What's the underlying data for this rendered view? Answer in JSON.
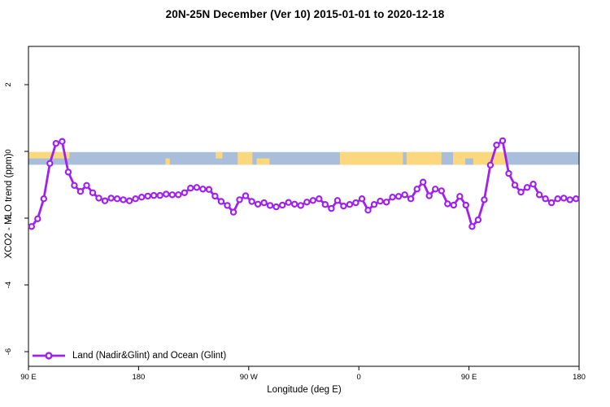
{
  "figure": {
    "title": "20N-25N December (Ver 10)   2015-01-01 to 2020-12-18",
    "colors": {
      "series": "#A020F0",
      "marker_fill": "#FFFFFF",
      "land": "#FBD87E",
      "ocean": "#A9BEDB",
      "axis": "#000000",
      "background": "#FFFFFF"
    }
  },
  "chart_data": {
    "type": "line",
    "title": "20N-25N December (Ver 10)   2015-01-01 to 2020-12-18",
    "xlabel": "Longitude (deg E)",
    "ylabel": "XCO2 - MLO trend (ppm)",
    "xlim": [
      90,
      540
    ],
    "ylim": [
      -6.4,
      3.1
    ],
    "grid": false,
    "legend_position": "bottom-left",
    "x_ticks": [
      {
        "lon": 90,
        "label": "90 E"
      },
      {
        "lon": 180,
        "label": "180"
      },
      {
        "lon": 270,
        "label": "90 W"
      },
      {
        "lon": 360,
        "label": "0"
      },
      {
        "lon": 450,
        "label": "90 E"
      },
      {
        "lon": 540,
        "label": "180"
      }
    ],
    "y_ticks": [
      {
        "value": 2,
        "label": "2"
      },
      {
        "value": 0,
        "label": "0"
      },
      {
        "value": -2,
        "label": "-2"
      },
      {
        "value": -4,
        "label": "-4"
      },
      {
        "value": -6,
        "label": "-6"
      }
    ],
    "x_units": "degrees longitude east of 0, unwrapped 90E..540",
    "x": [
      92.5,
      97.5,
      102.5,
      107.5,
      112.5,
      117.5,
      122.5,
      127.5,
      132.5,
      137.5,
      142.5,
      147.5,
      152.5,
      157.5,
      162.5,
      167.5,
      172.5,
      177.5,
      182.5,
      187.5,
      192.5,
      197.5,
      202.5,
      207.5,
      212.5,
      217.5,
      222.5,
      227.5,
      232.5,
      237.5,
      242.5,
      247.5,
      252.5,
      257.5,
      262.5,
      267.5,
      272.5,
      277.5,
      282.5,
      287.5,
      292.5,
      297.5,
      302.5,
      307.5,
      312.5,
      317.5,
      322.5,
      327.5,
      332.5,
      337.5,
      342.5,
      347.5,
      352.5,
      357.5,
      362.5,
      367.5,
      372.5,
      377.5,
      382.5,
      387.5,
      392.5,
      397.5,
      402.5,
      407.5,
      412.5,
      417.5,
      422.5,
      427.5,
      432.5,
      437.5,
      442.5,
      447.5,
      452.5,
      457.5,
      462.5,
      467.5,
      472.5,
      477.5,
      482.5,
      487.5,
      492.5,
      497.5,
      502.5,
      507.5,
      512.5,
      517.5,
      522.5,
      527.5,
      532.5,
      537.5
    ],
    "series": [
      {
        "name": "Land (Nadir&Glint) and Ocean (Glint)",
        "marker": "open-circle",
        "values": [
          -2.25,
          -2.02,
          -1.42,
          -0.36,
          0.24,
          0.3,
          -0.62,
          -1.02,
          -1.2,
          -1.02,
          -1.24,
          -1.4,
          -1.48,
          -1.4,
          -1.42,
          -1.45,
          -1.48,
          -1.42,
          -1.37,
          -1.34,
          -1.32,
          -1.32,
          -1.28,
          -1.3,
          -1.3,
          -1.24,
          -1.1,
          -1.08,
          -1.13,
          -1.14,
          -1.34,
          -1.5,
          -1.62,
          -1.82,
          -1.45,
          -1.33,
          -1.5,
          -1.58,
          -1.54,
          -1.62,
          -1.66,
          -1.61,
          -1.53,
          -1.58,
          -1.62,
          -1.52,
          -1.47,
          -1.42,
          -1.59,
          -1.71,
          -1.47,
          -1.64,
          -1.59,
          -1.54,
          -1.42,
          -1.76,
          -1.59,
          -1.49,
          -1.52,
          -1.37,
          -1.35,
          -1.3,
          -1.42,
          -1.13,
          -0.92,
          -1.33,
          -1.13,
          -1.18,
          -1.57,
          -1.61,
          -1.35,
          -1.61,
          -2.25,
          -2.05,
          -1.45,
          -0.41,
          0.19,
          0.32,
          -0.66,
          -1.01,
          -1.22,
          -1.08,
          -0.98,
          -1.3,
          -1.42,
          -1.54,
          -1.42,
          -1.4,
          -1.45,
          -1.42
        ]
      }
    ],
    "map_band": {
      "description": "land/ocean strip for 20N-25N latitude band",
      "y_top_ppm": -0.02,
      "y_bottom_ppm": -0.4,
      "base": "ocean",
      "land_segments": [
        {
          "from": 90,
          "to": 123.5,
          "part": "top"
        },
        {
          "from": 202,
          "to": 205.5,
          "part": "bottom"
        },
        {
          "from": 243,
          "to": 248.5,
          "part": "top"
        },
        {
          "from": 261,
          "to": 273,
          "part": "full"
        },
        {
          "from": 276.5,
          "to": 287,
          "part": "bottom"
        },
        {
          "from": 344.5,
          "to": 396,
          "part": "full"
        },
        {
          "from": 399,
          "to": 427.5,
          "part": "full"
        },
        {
          "from": 437,
          "to": 480.5,
          "part": "full"
        }
      ],
      "ocean_overlays": [
        {
          "from": 447,
          "to": 453.5,
          "part": "bottom"
        }
      ]
    }
  }
}
